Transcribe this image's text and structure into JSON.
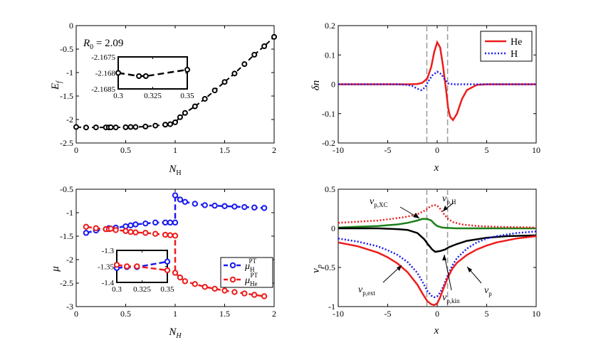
{
  "chart_data": [
    {
      "id": "p1",
      "type": "scatter",
      "xlabel": "N",
      "xlabel_sub": "H",
      "ylabel": "E",
      "ylabel_sub": "f",
      "xlim": [
        0,
        2
      ],
      "ylim": [
        -2.5,
        0
      ],
      "xticks": [
        0,
        0.5,
        1,
        1.5,
        2
      ],
      "xtick_labels": [
        "0",
        "0.5",
        "1",
        "1.5",
        "2"
      ],
      "yticks": [
        0,
        -0.5,
        -1,
        -1.5,
        -2,
        -2.5
      ],
      "ytick_labels": [
        "0",
        "-0.5",
        "-1",
        "-1.5",
        "-2",
        "-2.5"
      ],
      "annotation": "R",
      "annotation_sub": "0",
      "annotation_value": " = 2.09",
      "series": [
        {
          "name": "E_f",
          "color": "#000000",
          "marker": "circle",
          "line": "dashed",
          "x": [
            0,
            0.1,
            0.2,
            0.3,
            0.33,
            0.35,
            0.4,
            0.5,
            0.55,
            0.6,
            0.7,
            0.8,
            0.9,
            0.95,
            1.0,
            1.05,
            1.1,
            1.2,
            1.3,
            1.4,
            1.5,
            1.6,
            1.7,
            1.8,
            1.9,
            2.0
          ],
          "y": [
            -2.16,
            -2.17,
            -2.168,
            -2.168,
            -2.168,
            -2.167,
            -2.168,
            -2.165,
            -2.16,
            -2.16,
            -2.15,
            -2.13,
            -2.11,
            -2.1,
            -2.06,
            -1.95,
            -1.86,
            -1.72,
            -1.56,
            -1.38,
            -1.2,
            -1.02,
            -0.82,
            -0.62,
            -0.44,
            -0.24
          ]
        }
      ],
      "inset": {
        "xlim": [
          0.3,
          0.35
        ],
        "ylim": [
          -2.1685,
          -2.1675
        ],
        "xticks": [
          0.3,
          0.325,
          0.35
        ],
        "xtick_labels": [
          "0.3",
          "0.325",
          "0.35"
        ],
        "yticks": [
          -2.1675,
          -2.168,
          -2.1685
        ],
        "ytick_labels": [
          "-2.1675",
          "-2.168",
          "-2.1685"
        ],
        "series": [
          {
            "name": "E_f",
            "color": "#000000",
            "x": [
              0.3,
              0.315,
              0.32,
              0.35
            ],
            "y": [
              -2.168,
              -2.1681,
              -2.1681,
              -2.1679
            ]
          }
        ]
      }
    },
    {
      "id": "p2",
      "type": "line",
      "xlabel": "x",
      "ylabel": "δn",
      "xlim": [
        -10,
        10
      ],
      "ylim": [
        -0.2,
        0.2
      ],
      "xticks": [
        -10,
        -5,
        0,
        5,
        10
      ],
      "xtick_labels": [
        "-10",
        "-5",
        "0",
        "5",
        "10"
      ],
      "yticks": [
        0.2,
        0.1,
        0,
        -0.1,
        -0.2
      ],
      "ytick_labels": [
        "0.2",
        "0.1",
        "0",
        "-0.1",
        "-0.2"
      ],
      "vlines": [
        -1.05,
        1.05
      ],
      "legend_position": "top-right",
      "series": [
        {
          "name": "He",
          "color": "#ee1c1c",
          "line": "solid",
          "x": [
            -10,
            -3,
            -2,
            -1.5,
            -1,
            -0.6,
            -0.3,
            0,
            0.3,
            0.6,
            0.9,
            1.1,
            1.3,
            1.6,
            2,
            2.5,
            3,
            4,
            5,
            10
          ],
          "y": [
            0,
            0,
            0.001,
            0.005,
            0.02,
            0.06,
            0.11,
            0.143,
            0.125,
            0.06,
            -0.02,
            -0.08,
            -0.11,
            -0.122,
            -0.1,
            -0.05,
            -0.02,
            -0.002,
            0,
            0
          ]
        },
        {
          "name": "H",
          "color": "#1a1aee",
          "line": "dotted",
          "x": [
            -10,
            -4,
            -3,
            -2.5,
            -2,
            -1.6,
            -1.2,
            -0.9,
            -0.5,
            0,
            0.4,
            0.8,
            1.1,
            1.6,
            2.2,
            10
          ],
          "y": [
            0,
            0,
            -0.002,
            -0.006,
            -0.015,
            -0.02,
            -0.01,
            0.01,
            0.03,
            0.043,
            0.035,
            0.015,
            0.003,
            0,
            0,
            0
          ]
        }
      ]
    },
    {
      "id": "p3",
      "type": "line",
      "xlabel": "N",
      "xlabel_sub": "H",
      "ylabel": "μ",
      "xlim": [
        0,
        2
      ],
      "ylim": [
        -3,
        -0.5
      ],
      "xticks": [
        0,
        0.5,
        1,
        1.5,
        2
      ],
      "xtick_labels": [
        "0",
        "0.5",
        "1",
        "1.5",
        "2"
      ],
      "yticks": [
        -0.5,
        -1,
        -1.5,
        -2,
        -2.5,
        -3
      ],
      "ytick_labels": [
        "-0.5",
        "-1",
        "-1.5",
        "-2",
        "-2.5",
        "-3"
      ],
      "legend_position": "bottom-right",
      "legend": [
        {
          "label": "μ",
          "sub": "H",
          "sup": "PT",
          "color": "#1a1aee"
        },
        {
          "label": "μ",
          "sub": "He",
          "sup": "PT",
          "color": "#ee1c1c"
        }
      ],
      "series": [
        {
          "name": "μH",
          "color": "#1a1aee",
          "x": [
            0.1,
            0.2,
            0.3,
            0.33,
            0.35,
            0.4,
            0.5,
            0.55,
            0.6,
            0.7,
            0.8,
            0.9,
            0.95,
            1.0,
            1.0,
            1.05,
            1.1,
            1.2,
            1.3,
            1.4,
            1.5,
            1.6,
            1.7,
            1.8,
            1.9
          ],
          "y": [
            -1.43,
            -1.38,
            -1.35,
            -1.33,
            -1.34,
            -1.32,
            -1.29,
            -1.27,
            -1.25,
            -1.23,
            -1.21,
            -1.21,
            -1.21,
            -1.21,
            -0.63,
            -0.72,
            -0.77,
            -0.81,
            -0.84,
            -0.85,
            -0.86,
            -0.87,
            -0.88,
            -0.89,
            -0.9
          ]
        },
        {
          "name": "μHe",
          "color": "#ee1c1c",
          "x": [
            0.1,
            0.2,
            0.3,
            0.33,
            0.35,
            0.4,
            0.5,
            0.55,
            0.6,
            0.7,
            0.8,
            0.9,
            0.95,
            1.0,
            1.0,
            1.05,
            1.1,
            1.2,
            1.3,
            1.4,
            1.5,
            1.6,
            1.7,
            1.8,
            1.9
          ],
          "y": [
            -1.3,
            -1.33,
            -1.35,
            -1.35,
            -1.34,
            -1.37,
            -1.39,
            -1.41,
            -1.42,
            -1.43,
            -1.45,
            -1.47,
            -1.48,
            -1.49,
            -2.28,
            -2.38,
            -2.46,
            -2.52,
            -2.58,
            -2.62,
            -2.66,
            -2.69,
            -2.72,
            -2.75,
            -2.78
          ]
        }
      ],
      "inset": {
        "xlim": [
          0.3,
          0.35
        ],
        "ylim": [
          -1.4,
          -1.3
        ],
        "xticks": [
          0.3,
          0.325,
          0.35
        ],
        "xtick_labels": [
          "0.3",
          "0.325",
          "0.35"
        ],
        "yticks": [
          -1.3,
          -1.35,
          -1.4
        ],
        "ytick_labels": [
          "-1.3",
          "-1.35",
          "-1.4"
        ],
        "series": [
          {
            "name": "μH",
            "color": "#1a1aee",
            "x": [
              0.3,
              0.31,
              0.32,
              0.35
            ],
            "y": [
              -1.355,
              -1.352,
              -1.352,
              -1.335
            ]
          },
          {
            "name": "μHe",
            "color": "#ee1c1c",
            "x": [
              0.3,
              0.31,
              0.32,
              0.35
            ],
            "y": [
              -1.345,
              -1.35,
              -1.35,
              -1.362
            ]
          }
        ]
      }
    },
    {
      "id": "p4",
      "type": "line",
      "xlabel": "x",
      "ylabel": "v",
      "ylabel_sub": "p",
      "xlim": [
        -10,
        10
      ],
      "ylim": [
        -1,
        0.5
      ],
      "xticks": [
        -10,
        -5,
        0,
        5,
        10
      ],
      "xtick_labels": [
        "-10",
        "-5",
        "0",
        "5",
        "10"
      ],
      "yticks": [
        0.5,
        0,
        -0.5,
        -1
      ],
      "ytick_labels": [
        "0.5",
        "0",
        "-0.5",
        "-1"
      ],
      "vlines": [
        -1.05,
        1.05
      ],
      "annotations": [
        {
          "label": "v",
          "sub": "p,XC"
        },
        {
          "label": "v",
          "sub": "p,H"
        },
        {
          "label": "v",
          "sub": "p,ext"
        },
        {
          "label": "v",
          "sub": "p,kin"
        },
        {
          "label": "v",
          "sub": "p"
        }
      ],
      "series": [
        {
          "name": "vp,XC",
          "color": "#1a801a",
          "line": "solid",
          "x": [
            -10,
            -6,
            -4,
            -3,
            -2,
            -1.5,
            -1,
            -0.6,
            -0.3,
            0,
            0.5,
            1,
            2,
            4,
            10
          ],
          "y": [
            0.01,
            0.03,
            0.05,
            0.07,
            0.1,
            0.12,
            0.12,
            0.1,
            0.06,
            0.03,
            0.01,
            0.005,
            0,
            0,
            0
          ]
        },
        {
          "name": "vp,H",
          "color": "#ee1c1c",
          "line": "dotted",
          "x": [
            -10,
            -6,
            -4,
            -3,
            -2,
            -1.2,
            -0.7,
            -0.3,
            0,
            0.3,
            0.7,
            1.1,
            1.6,
            2.5,
            4,
            6,
            10
          ],
          "y": [
            0.07,
            0.1,
            0.13,
            0.15,
            0.18,
            0.23,
            0.28,
            0.3,
            0.29,
            0.25,
            0.18,
            0.12,
            0.08,
            0.05,
            0.03,
            0.02,
            0.01
          ]
        },
        {
          "name": "vp,kin",
          "color": "#000000",
          "line": "solid",
          "x": [
            -10,
            -6,
            -4,
            -3,
            -2,
            -1.3,
            -0.9,
            -0.5,
            -0.2,
            0.3,
            0.8,
            1.2,
            2,
            3,
            5,
            7,
            10
          ],
          "y": [
            0,
            0,
            -0.01,
            -0.02,
            -0.06,
            -0.14,
            -0.21,
            -0.27,
            -0.3,
            -0.29,
            -0.27,
            -0.24,
            -0.2,
            -0.16,
            -0.12,
            -0.1,
            -0.09
          ]
        },
        {
          "name": "vp",
          "color": "#1a1aee",
          "line": "dotted",
          "x": [
            -10,
            -8,
            -6,
            -5,
            -4,
            -3,
            -2,
            -1.5,
            -1,
            -0.6,
            -0.3,
            0,
            0.3,
            0.6,
            1,
            1.5,
            2,
            3,
            4,
            5,
            6,
            8,
            10
          ],
          "y": [
            -0.13,
            -0.17,
            -0.23,
            -0.28,
            -0.34,
            -0.43,
            -0.57,
            -0.68,
            -0.8,
            -0.86,
            -0.88,
            -0.87,
            -0.82,
            -0.75,
            -0.62,
            -0.48,
            -0.38,
            -0.26,
            -0.18,
            -0.13,
            -0.1,
            -0.06,
            -0.04
          ]
        },
        {
          "name": "vp,ext",
          "color": "#ee1c1c",
          "line": "solid",
          "x": [
            -10,
            -8,
            -6,
            -5,
            -4,
            -3,
            -2,
            -1.5,
            -1,
            -0.6,
            -0.3,
            0,
            0.3,
            0.6,
            1,
            1.5,
            2,
            3,
            4,
            5,
            6,
            8,
            10
          ],
          "y": [
            -0.18,
            -0.23,
            -0.31,
            -0.37,
            -0.45,
            -0.56,
            -0.72,
            -0.83,
            -0.93,
            -0.97,
            -0.98,
            -0.96,
            -0.88,
            -0.78,
            -0.65,
            -0.52,
            -0.44,
            -0.34,
            -0.27,
            -0.22,
            -0.18,
            -0.13,
            -0.1
          ]
        }
      ]
    }
  ]
}
